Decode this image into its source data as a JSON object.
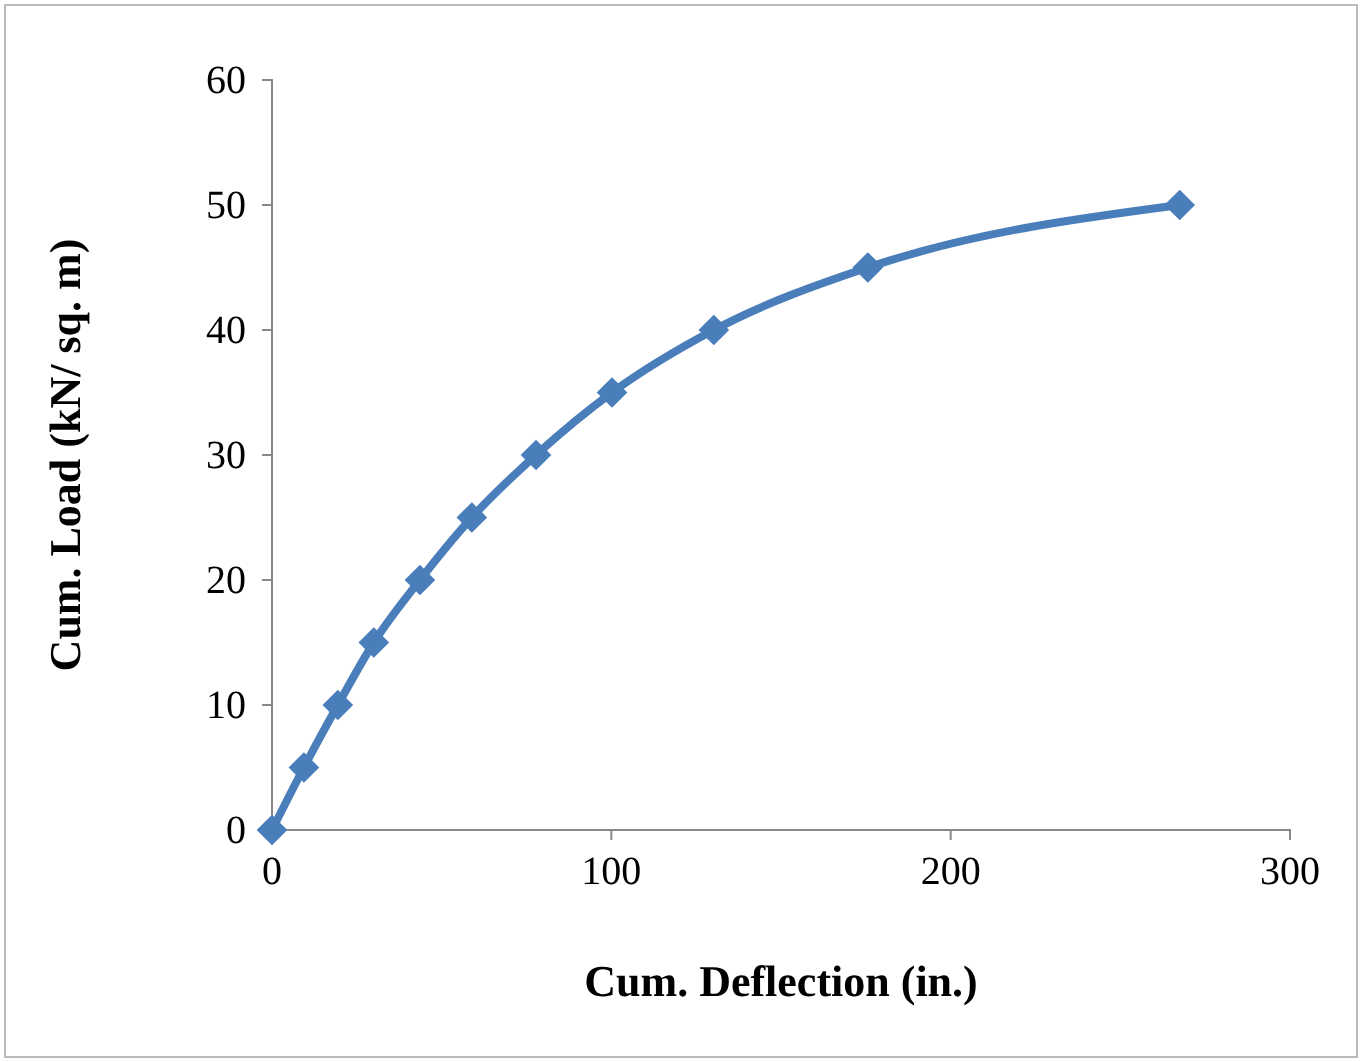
{
  "chart_data": {
    "type": "line",
    "xlabel": "Cum. Deflection (in.)",
    "ylabel": "Cum. Load (kN/ sq. m)",
    "x": [
      0,
      9.4,
      19.4,
      30,
      43.6,
      58.9,
      77.8,
      100.2,
      130.2,
      175.6,
      267.5
    ],
    "series": [
      {
        "color": "#4a7ebb",
        "values": [
          0,
          5,
          10,
          15,
          20,
          25,
          30,
          35,
          40,
          45,
          50
        ]
      }
    ],
    "xlim": [
      0,
      300
    ],
    "xticks": [
      0,
      100,
      200,
      300
    ],
    "ylim": [
      0,
      60
    ],
    "yticks": [
      0,
      10,
      20,
      30,
      40,
      50,
      60
    ],
    "grid": false,
    "marker": "diamond",
    "line_style": "solid"
  }
}
